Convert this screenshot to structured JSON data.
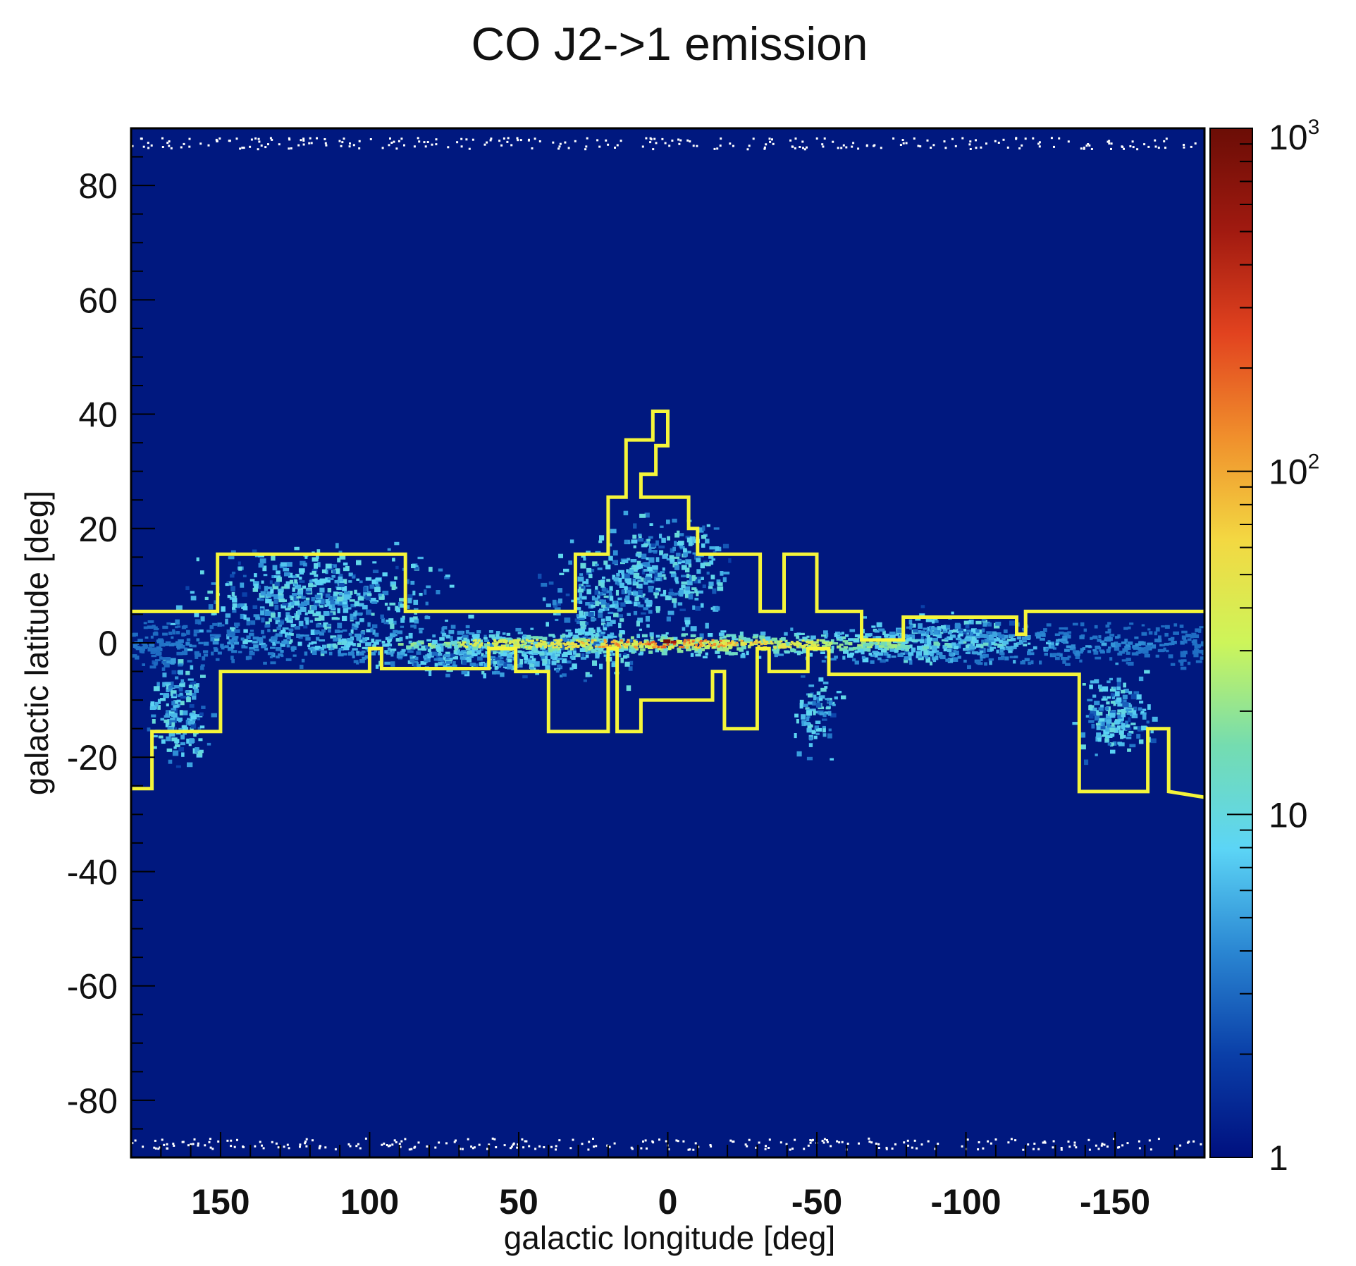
{
  "chart_data": {
    "type": "heatmap",
    "title": "CO J2->1 emission",
    "xlabel": "galactic longitude [deg]",
    "ylabel": "galactic latitude [deg]",
    "xlim": [
      180,
      -180
    ],
    "ylim": [
      -90,
      90
    ],
    "x_ticks": [
      150,
      100,
      50,
      0,
      -50,
      -100,
      -150
    ],
    "x_tick_labels": [
      "150",
      "100",
      "50",
      "0",
      "-50",
      "-100",
      "-150"
    ],
    "y_ticks": [
      80,
      60,
      40,
      20,
      0,
      -20,
      -40,
      -60,
      -80
    ],
    "y_tick_labels": [
      "80",
      "60",
      "40",
      "20",
      "0",
      "-20",
      "-40",
      "-60",
      "-80"
    ],
    "colorbar": {
      "scale": "log",
      "range": [
        1,
        1000
      ],
      "ticks": [
        1,
        10,
        100,
        1000
      ],
      "tick_labels": [
        {
          "base": "1",
          "exp": ""
        },
        {
          "base": "10",
          "exp": ""
        },
        {
          "base": "10",
          "exp": "2"
        },
        {
          "base": "10",
          "exp": "3"
        }
      ],
      "colormap": [
        "#00107f",
        "#0a3fa8",
        "#2a86d2",
        "#5cd5f6",
        "#74dcb0",
        "#cdf55a",
        "#f3d842",
        "#f08f2c",
        "#e2431f",
        "#a11a10",
        "#6b0d06"
      ]
    },
    "background_color": "#00187f",
    "contour_color": "#f5f53a",
    "upper_boundary": [
      [
        180,
        5.5
      ],
      [
        151,
        5.5
      ],
      [
        151,
        15.5
      ],
      [
        88,
        15.5
      ],
      [
        88,
        5.5
      ],
      [
        31,
        5.5
      ],
      [
        31,
        15.5
      ],
      [
        20,
        15.5
      ],
      [
        20,
        25.5
      ],
      [
        14,
        25.5
      ],
      [
        14,
        35.5
      ],
      [
        5,
        35.5
      ],
      [
        5,
        40.5
      ],
      [
        0,
        40.5
      ],
      [
        0,
        34.5
      ],
      [
        4,
        34.5
      ],
      [
        4,
        29.5
      ],
      [
        9,
        29.5
      ],
      [
        9,
        25.5
      ],
      [
        -7,
        25.5
      ],
      [
        -7,
        20
      ],
      [
        -10,
        20
      ],
      [
        -10,
        15.5
      ],
      [
        -31,
        15.5
      ],
      [
        -31,
        5.5
      ],
      [
        -39,
        5.5
      ],
      [
        -39,
        15.5
      ],
      [
        -50,
        15.5
      ],
      [
        -50,
        5.5
      ],
      [
        -65,
        5.5
      ],
      [
        -65,
        0.5
      ],
      [
        -79,
        0.5
      ],
      [
        -79,
        4.5
      ],
      [
        -117,
        4.5
      ],
      [
        -117,
        1.5
      ],
      [
        -120,
        1.5
      ],
      [
        -120,
        5.5
      ],
      [
        -180,
        5.5
      ]
    ],
    "lower_boundary": [
      [
        180,
        -25.5
      ],
      [
        173,
        -25.5
      ],
      [
        173,
        -15.5
      ],
      [
        150,
        -15.5
      ],
      [
        150,
        -5
      ],
      [
        100,
        -5
      ],
      [
        100,
        -1
      ],
      [
        96,
        -1
      ],
      [
        96,
        -4.5
      ],
      [
        60,
        -4.5
      ],
      [
        60,
        -1
      ],
      [
        51,
        -1
      ],
      [
        51,
        -5
      ],
      [
        40,
        -5
      ],
      [
        40,
        -15.5
      ],
      [
        20,
        -15.5
      ],
      [
        20,
        -1
      ],
      [
        17,
        -1
      ],
      [
        17,
        -15.5
      ],
      [
        9,
        -15.5
      ],
      [
        9,
        -10
      ],
      [
        -15,
        -10
      ],
      [
        -15,
        -5
      ],
      [
        -19,
        -5
      ],
      [
        -19,
        -15
      ],
      [
        -30,
        -15
      ],
      [
        -30,
        -1
      ],
      [
        -34,
        -1
      ],
      [
        -34,
        -5
      ],
      [
        -47,
        -5
      ],
      [
        -47,
        -1
      ],
      [
        -54,
        -1
      ],
      [
        -54,
        -5.5
      ],
      [
        -138,
        -5.5
      ],
      [
        -138,
        -26
      ],
      [
        -161,
        -26
      ],
      [
        -161,
        -15
      ],
      [
        -168,
        -15
      ],
      [
        -168,
        -26
      ],
      [
        -180,
        -27
      ]
    ]
  }
}
